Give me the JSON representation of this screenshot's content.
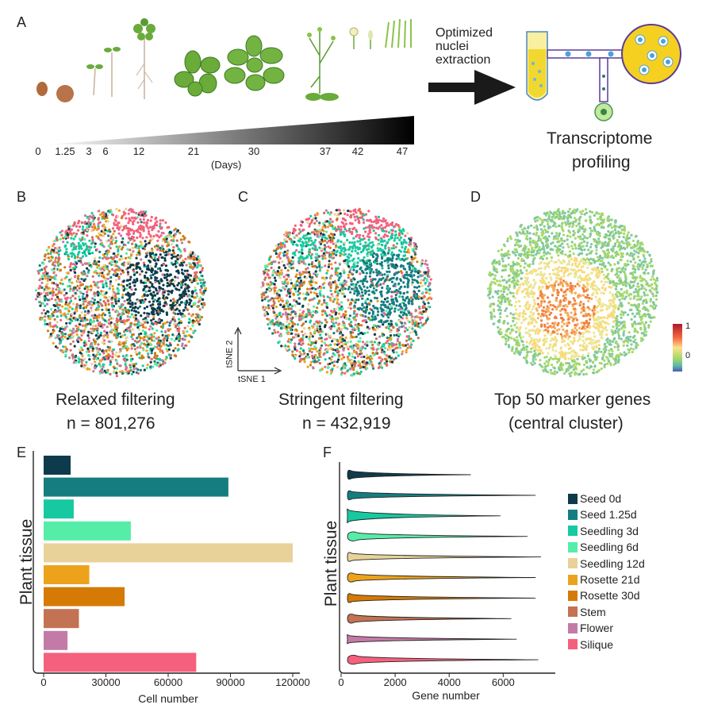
{
  "panels": {
    "A": "A",
    "B": "B",
    "C": "C",
    "D": "D",
    "E": "E",
    "F": "F"
  },
  "panel_a": {
    "extraction_line1": "Optimized",
    "extraction_line2": "nuclei",
    "extraction_line3": "extraction",
    "profiling_line1": "Transcriptome",
    "profiling_line2": "profiling",
    "days_label": "(Days)",
    "timeline_ticks": [
      "0",
      "1.25",
      "3",
      "6",
      "12",
      "21",
      "30",
      "37",
      "42",
      "47"
    ]
  },
  "panel_b": {
    "caption": "Relaxed filtering",
    "count": "n = 801,276"
  },
  "panel_c": {
    "caption": "Stringent filtering",
    "count": "n = 432,919",
    "axis_x": "tSNE 1",
    "axis_y": "tSNE 2"
  },
  "panel_d": {
    "caption_line1": "Top 50 marker genes",
    "caption_line2": "(central cluster)",
    "scale_max": "1",
    "scale_zero": "0"
  },
  "legend": {
    "items": [
      {
        "label": "Seed 0d",
        "color": "#0d3b4b"
      },
      {
        "label": "Seed 1.25d",
        "color": "#157d80"
      },
      {
        "label": "Seedling 3d",
        "color": "#17c9a0"
      },
      {
        "label": "Seedling 6d",
        "color": "#56eda8"
      },
      {
        "label": "Seedling 12d",
        "color": "#e8d29a"
      },
      {
        "label": "Rosette 21d",
        "color": "#eda21c"
      },
      {
        "label": "Rosette 30d",
        "color": "#d47a05"
      },
      {
        "label": "Stem",
        "color": "#c37253"
      },
      {
        "label": "Flower",
        "color": "#c47aa6"
      },
      {
        "label": "Silique",
        "color": "#f5607c"
      }
    ]
  },
  "chart_data": [
    {
      "type": "bar",
      "orientation": "horizontal",
      "categories": [
        "Seed 0d",
        "Seed 1.25d",
        "Seedling 3d",
        "Seedling 6d",
        "Seedling 12d",
        "Rosette 21d",
        "Rosette 30d",
        "Stem",
        "Flower",
        "Silique"
      ],
      "values": [
        13000,
        89000,
        14500,
        42000,
        120000,
        22000,
        39000,
        17000,
        11500,
        73500
      ],
      "xlabel": "Cell number",
      "ylabel": "Plant tissue",
      "xlim": [
        0,
        120000
      ],
      "xticks": [
        "0",
        "30000",
        "60000",
        "90000",
        "120000"
      ],
      "grid": false
    },
    {
      "type": "violin",
      "categories": [
        "Seed 0d",
        "Seed 1.25d",
        "Seedling 3d",
        "Seedling 6d",
        "Seedling 12d",
        "Rosette 21d",
        "Rosette 30d",
        "Stem",
        "Flower",
        "Silique"
      ],
      "max": [
        4800,
        7200,
        5900,
        6900,
        7400,
        7200,
        7200,
        6300,
        6500,
        7300
      ],
      "mode": [
        400,
        400,
        300,
        600,
        400,
        500,
        400,
        500,
        300,
        600
      ],
      "xlabel": "Gene number",
      "ylabel": "Plant tissue",
      "xlim": [
        0,
        7400
      ],
      "xticks": [
        "0",
        "2000",
        "4000",
        "6000"
      ],
      "grid": false
    }
  ]
}
